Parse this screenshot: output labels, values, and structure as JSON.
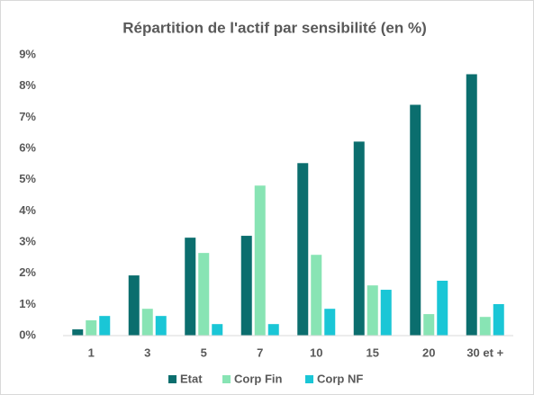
{
  "chart_data": {
    "type": "bar",
    "title": "Répartition de l'actif par sensibilité (en %)",
    "categories": [
      "1",
      "3",
      "5",
      "7",
      "10",
      "15",
      "20",
      "30 et +"
    ],
    "series": [
      {
        "name": "Etat",
        "color": "#0b6e6e",
        "values": [
          0.2,
          1.93,
          3.14,
          3.2,
          5.53,
          6.22,
          7.4,
          8.38
        ]
      },
      {
        "name": "Corp Fin",
        "color": "#88e4b4",
        "values": [
          0.49,
          0.86,
          2.65,
          4.81,
          2.59,
          1.61,
          0.69,
          0.6
        ]
      },
      {
        "name": "Corp NF",
        "color": "#1ac6d6",
        "values": [
          0.63,
          0.63,
          0.37,
          0.37,
          0.86,
          1.47,
          1.76,
          1.01
        ]
      }
    ],
    "ylim": [
      0,
      9
    ],
    "yticks": [
      {
        "value": 0,
        "label": "0%"
      },
      {
        "value": 1,
        "label": "1%"
      },
      {
        "value": 2,
        "label": "2%"
      },
      {
        "value": 3,
        "label": "3%"
      },
      {
        "value": 4,
        "label": "4%"
      },
      {
        "value": 5,
        "label": "5%"
      },
      {
        "value": 6,
        "label": "6%"
      },
      {
        "value": 7,
        "label": "7%"
      },
      {
        "value": 8,
        "label": "8%"
      },
      {
        "value": 9,
        "label": "9%"
      }
    ],
    "grid": false,
    "legend": "bottom"
  }
}
